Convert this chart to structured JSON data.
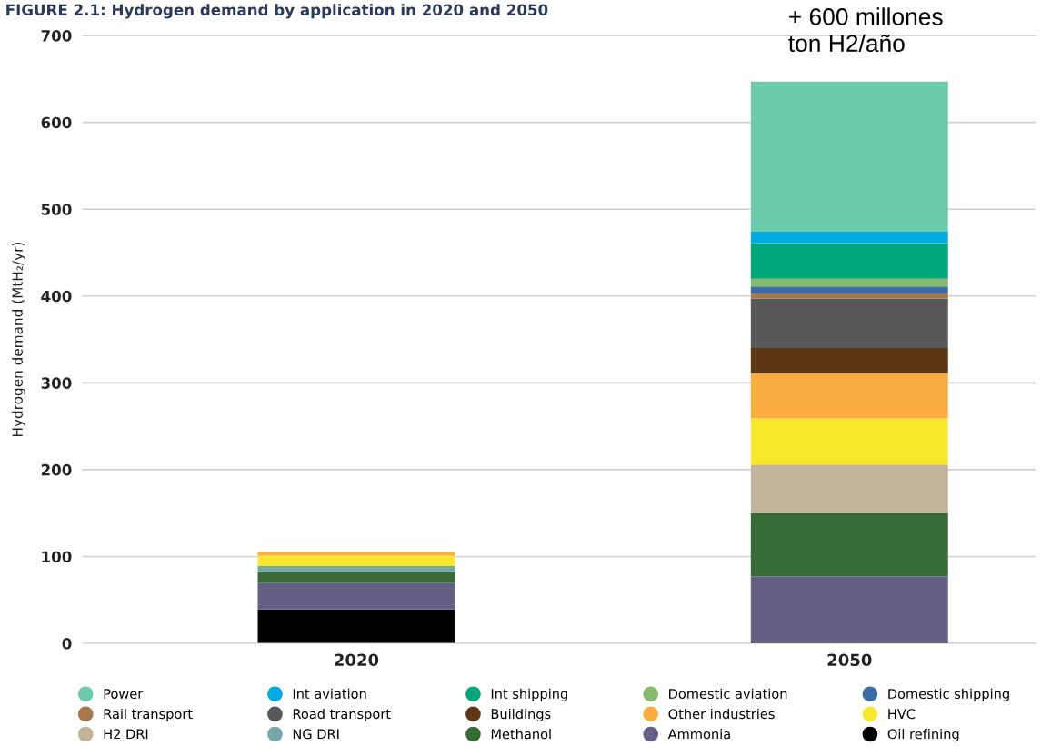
{
  "chart_data": {
    "type": "bar",
    "stacked": true,
    "title": "FIGURE 2.1: Hydrogen demand by application in 2020 and 2050",
    "ylabel": "Hydrogen demand (MtH₂/yr)",
    "categories": [
      "2020",
      "2050"
    ],
    "ylim": [
      0,
      700
    ],
    "yticks": [
      0,
      100,
      200,
      300,
      400,
      500,
      600,
      700
    ],
    "grid": "y",
    "legend": "bottom",
    "annotations": [
      "+ 600 millones\nton H2/año"
    ],
    "series": [
      {
        "name": "Oil refining",
        "color": "#000000",
        "values": [
          39,
          2
        ]
      },
      {
        "name": "Ammonia",
        "color": "#655f86",
        "values": [
          31,
          75
        ]
      },
      {
        "name": "Methanol",
        "color": "#366b35",
        "values": [
          12,
          73
        ]
      },
      {
        "name": "NG DRI",
        "color": "#75a9a9",
        "values": [
          7,
          0
        ]
      },
      {
        "name": "H2 DRI",
        "color": "#c2b49a",
        "values": [
          0,
          56
        ]
      },
      {
        "name": "HVC",
        "color": "#f7e82e",
        "values": [
          12,
          53
        ]
      },
      {
        "name": "Other industries",
        "color": "#fbad3f",
        "values": [
          4,
          52
        ]
      },
      {
        "name": "Buildings",
        "color": "#5e3714",
        "values": [
          0,
          29
        ]
      },
      {
        "name": "Road transport",
        "color": "#58585a",
        "values": [
          0,
          57
        ]
      },
      {
        "name": "Rail transport",
        "color": "#a6784a",
        "values": [
          0,
          6
        ]
      },
      {
        "name": "Domestic shipping",
        "color": "#3b6ea8",
        "values": [
          0,
          8
        ]
      },
      {
        "name": "Domestic aviation",
        "color": "#88ba6c",
        "values": [
          0,
          9
        ]
      },
      {
        "name": "Int shipping",
        "color": "#00a67c",
        "values": [
          0,
          41
        ]
      },
      {
        "name": "Int aviation",
        "color": "#00abe3",
        "values": [
          0,
          13
        ]
      },
      {
        "name": "Power",
        "color": "#6ccbac",
        "values": [
          0,
          173
        ]
      }
    ]
  }
}
